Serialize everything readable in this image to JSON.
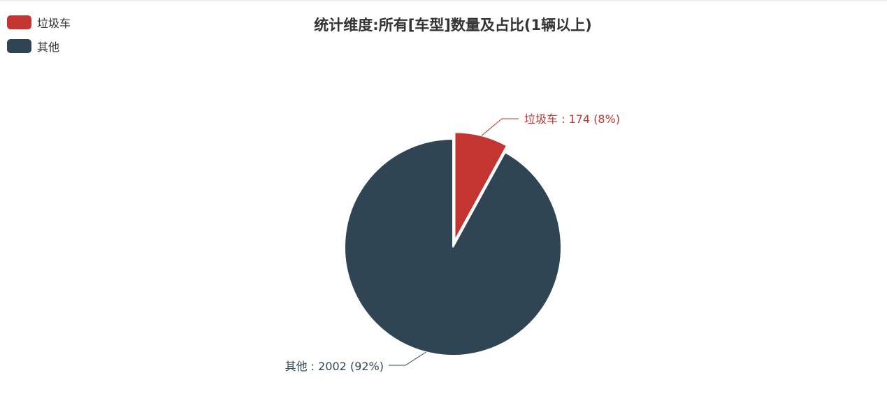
{
  "chart_data": {
    "type": "pie",
    "title": "统计维度:所有[车型]数量及占比(1辆以上)",
    "legend_position": "top-left",
    "slices": [
      {
        "name": "垃圾车",
        "value": 174,
        "percent": "8%",
        "label": "垃圾车 : 174 (8%)",
        "color": "#c23531",
        "selected": true
      },
      {
        "name": "其他",
        "value": 2002,
        "percent": "92%",
        "label": "其他 : 2002 (92%)",
        "color": "#2f4554",
        "selected": false
      }
    ]
  }
}
